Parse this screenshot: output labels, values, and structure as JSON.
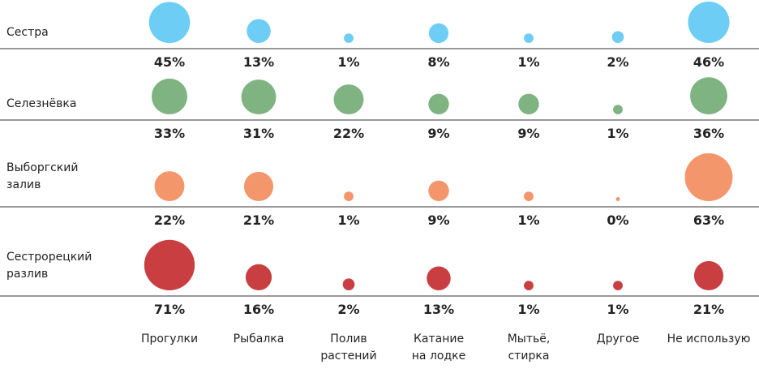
{
  "chart_data": {
    "type": "bubble",
    "categories": [
      "Прогулки",
      "Рыбалка",
      "Полив растений",
      "Катание на лодке",
      "Мытьё, стирка",
      "Другое",
      "Не использую"
    ],
    "series": [
      {
        "name": "Сестра",
        "color": "#6dcdf5",
        "values": [
          45,
          13,
          1,
          8,
          1,
          2,
          46
        ],
        "value_labels": [
          "45%",
          "13%",
          "1%",
          "8%",
          "1%",
          "2%",
          "46%"
        ]
      },
      {
        "name": "Селезнёвка",
        "color": "#7fb381",
        "values": [
          33,
          31,
          22,
          9,
          9,
          1,
          36
        ],
        "value_labels": [
          "33%",
          "31%",
          "22%",
          "9%",
          "9%",
          "1%",
          "36%"
        ]
      },
      {
        "name": "Выборгский залив",
        "color": "#f4966b",
        "values": [
          22,
          21,
          1,
          9,
          1,
          0,
          63
        ],
        "value_labels": [
          "22%",
          "21%",
          "1%",
          "9%",
          "1%",
          "0%",
          "63%"
        ]
      },
      {
        "name": "Сестрорецкий разлив",
        "color": "#c93f41",
        "values": [
          71,
          16,
          2,
          13,
          1,
          1,
          21
        ],
        "value_labels": [
          "71%",
          "16%",
          "2%",
          "13%",
          "1%",
          "1%",
          "21%"
        ]
      }
    ]
  }
}
